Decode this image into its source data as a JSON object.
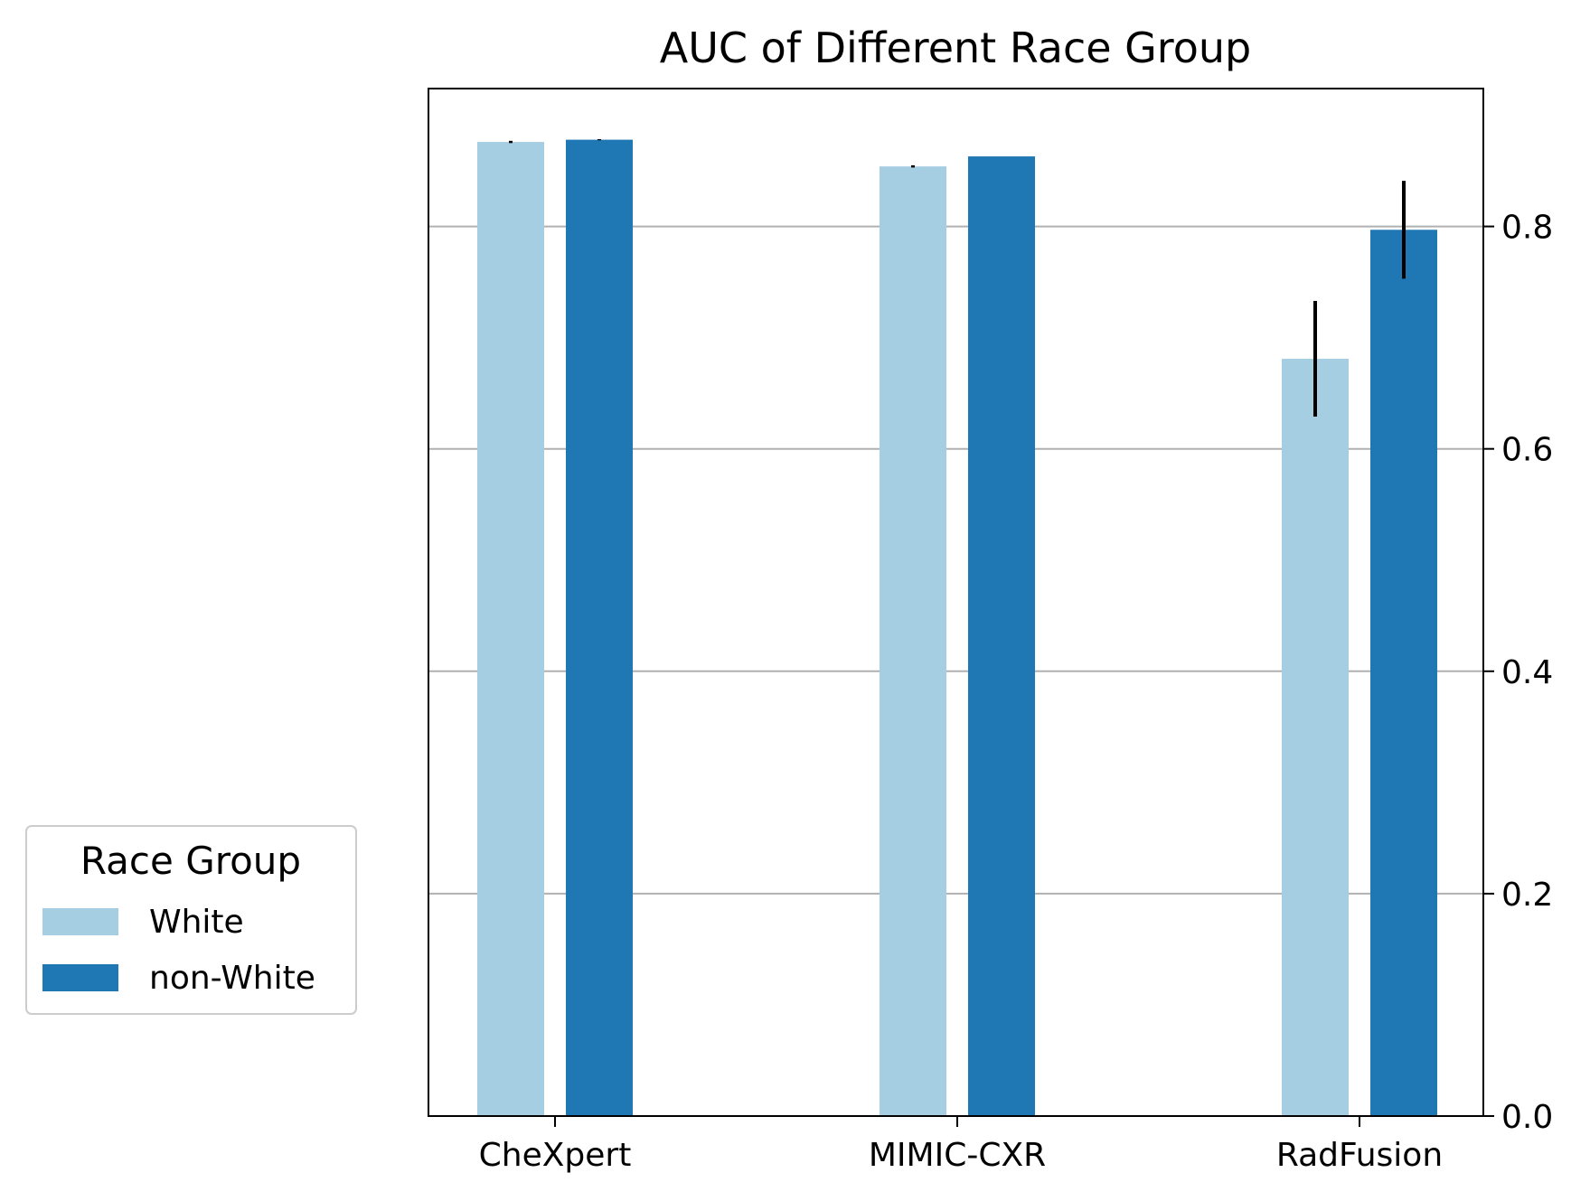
{
  "chart_data": {
    "type": "bar",
    "title": "AUC of Different Race Group",
    "xlabel": "",
    "ylabel": "",
    "categories": [
      "CheXpert",
      "MIMIC-CXR",
      "RadFusion"
    ],
    "series": [
      {
        "name": "White",
        "color": "#a6cee3",
        "values": [
          0.876,
          0.854,
          0.681
        ],
        "errors": [
          0.001,
          0.001,
          0.052
        ]
      },
      {
        "name": "non-White",
        "color": "#1f78b4",
        "values": [
          0.878,
          0.863,
          0.797
        ],
        "errors": [
          0.0005,
          0.0,
          0.044
        ]
      }
    ],
    "ylim": [
      0,
      0.924
    ],
    "yticks": [
      0.0,
      0.2,
      0.4,
      0.6,
      0.8
    ],
    "ytick_labels": [
      "0.0",
      "0.2",
      "0.4",
      "0.6",
      "0.8"
    ],
    "y_axis_side": "right",
    "grid": "y",
    "grid_color": "#b0b0b0",
    "legend": {
      "title": "Race Group",
      "placement": "outside-lower-left"
    }
  }
}
